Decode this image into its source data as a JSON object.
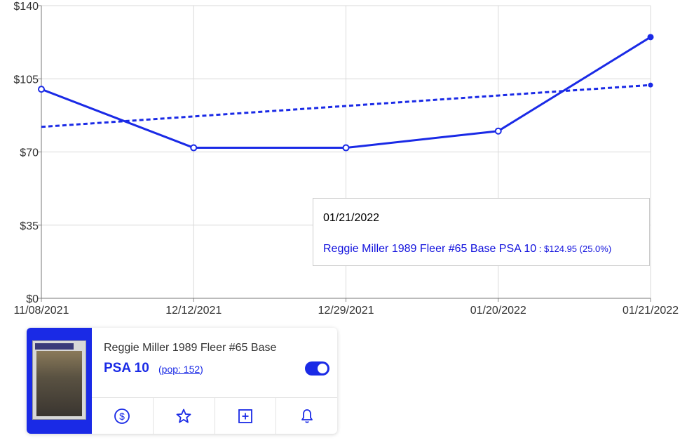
{
  "chart_data": {
    "type": "line",
    "x": [
      "11/08/2021",
      "12/12/2021",
      "12/29/2021",
      "01/20/2022",
      "01/21/2022"
    ],
    "series": [
      {
        "name": "Reggie Miller 1989 Fleer #65 Base PSA 10",
        "values": [
          100,
          72,
          72,
          80,
          124.95
        ],
        "style": "solid"
      },
      {
        "values": [
          82,
          87,
          92,
          97,
          102
        ],
        "style": "dashed"
      }
    ],
    "yticks": [
      "$0",
      "$35",
      "$70",
      "$105",
      "$140"
    ],
    "ylim": [
      0,
      140
    ],
    "grid": true,
    "line_color": "#1a2ae6"
  },
  "tooltip": {
    "date": "01/21/2022",
    "name": "Reggie Miller 1989 Fleer #65 Base PSA 10",
    "separator": " : ",
    "value": "$124.95 (25.0%)"
  },
  "card": {
    "title": "Reggie Miller 1989 Fleer #65 Base",
    "grade": "PSA 10",
    "pop_open": "(",
    "pop_link": "pop: 152",
    "pop_close": ")",
    "toggle_on": true,
    "actions": [
      "dollar-icon",
      "star-icon",
      "plus-square-icon",
      "bell-icon"
    ]
  }
}
